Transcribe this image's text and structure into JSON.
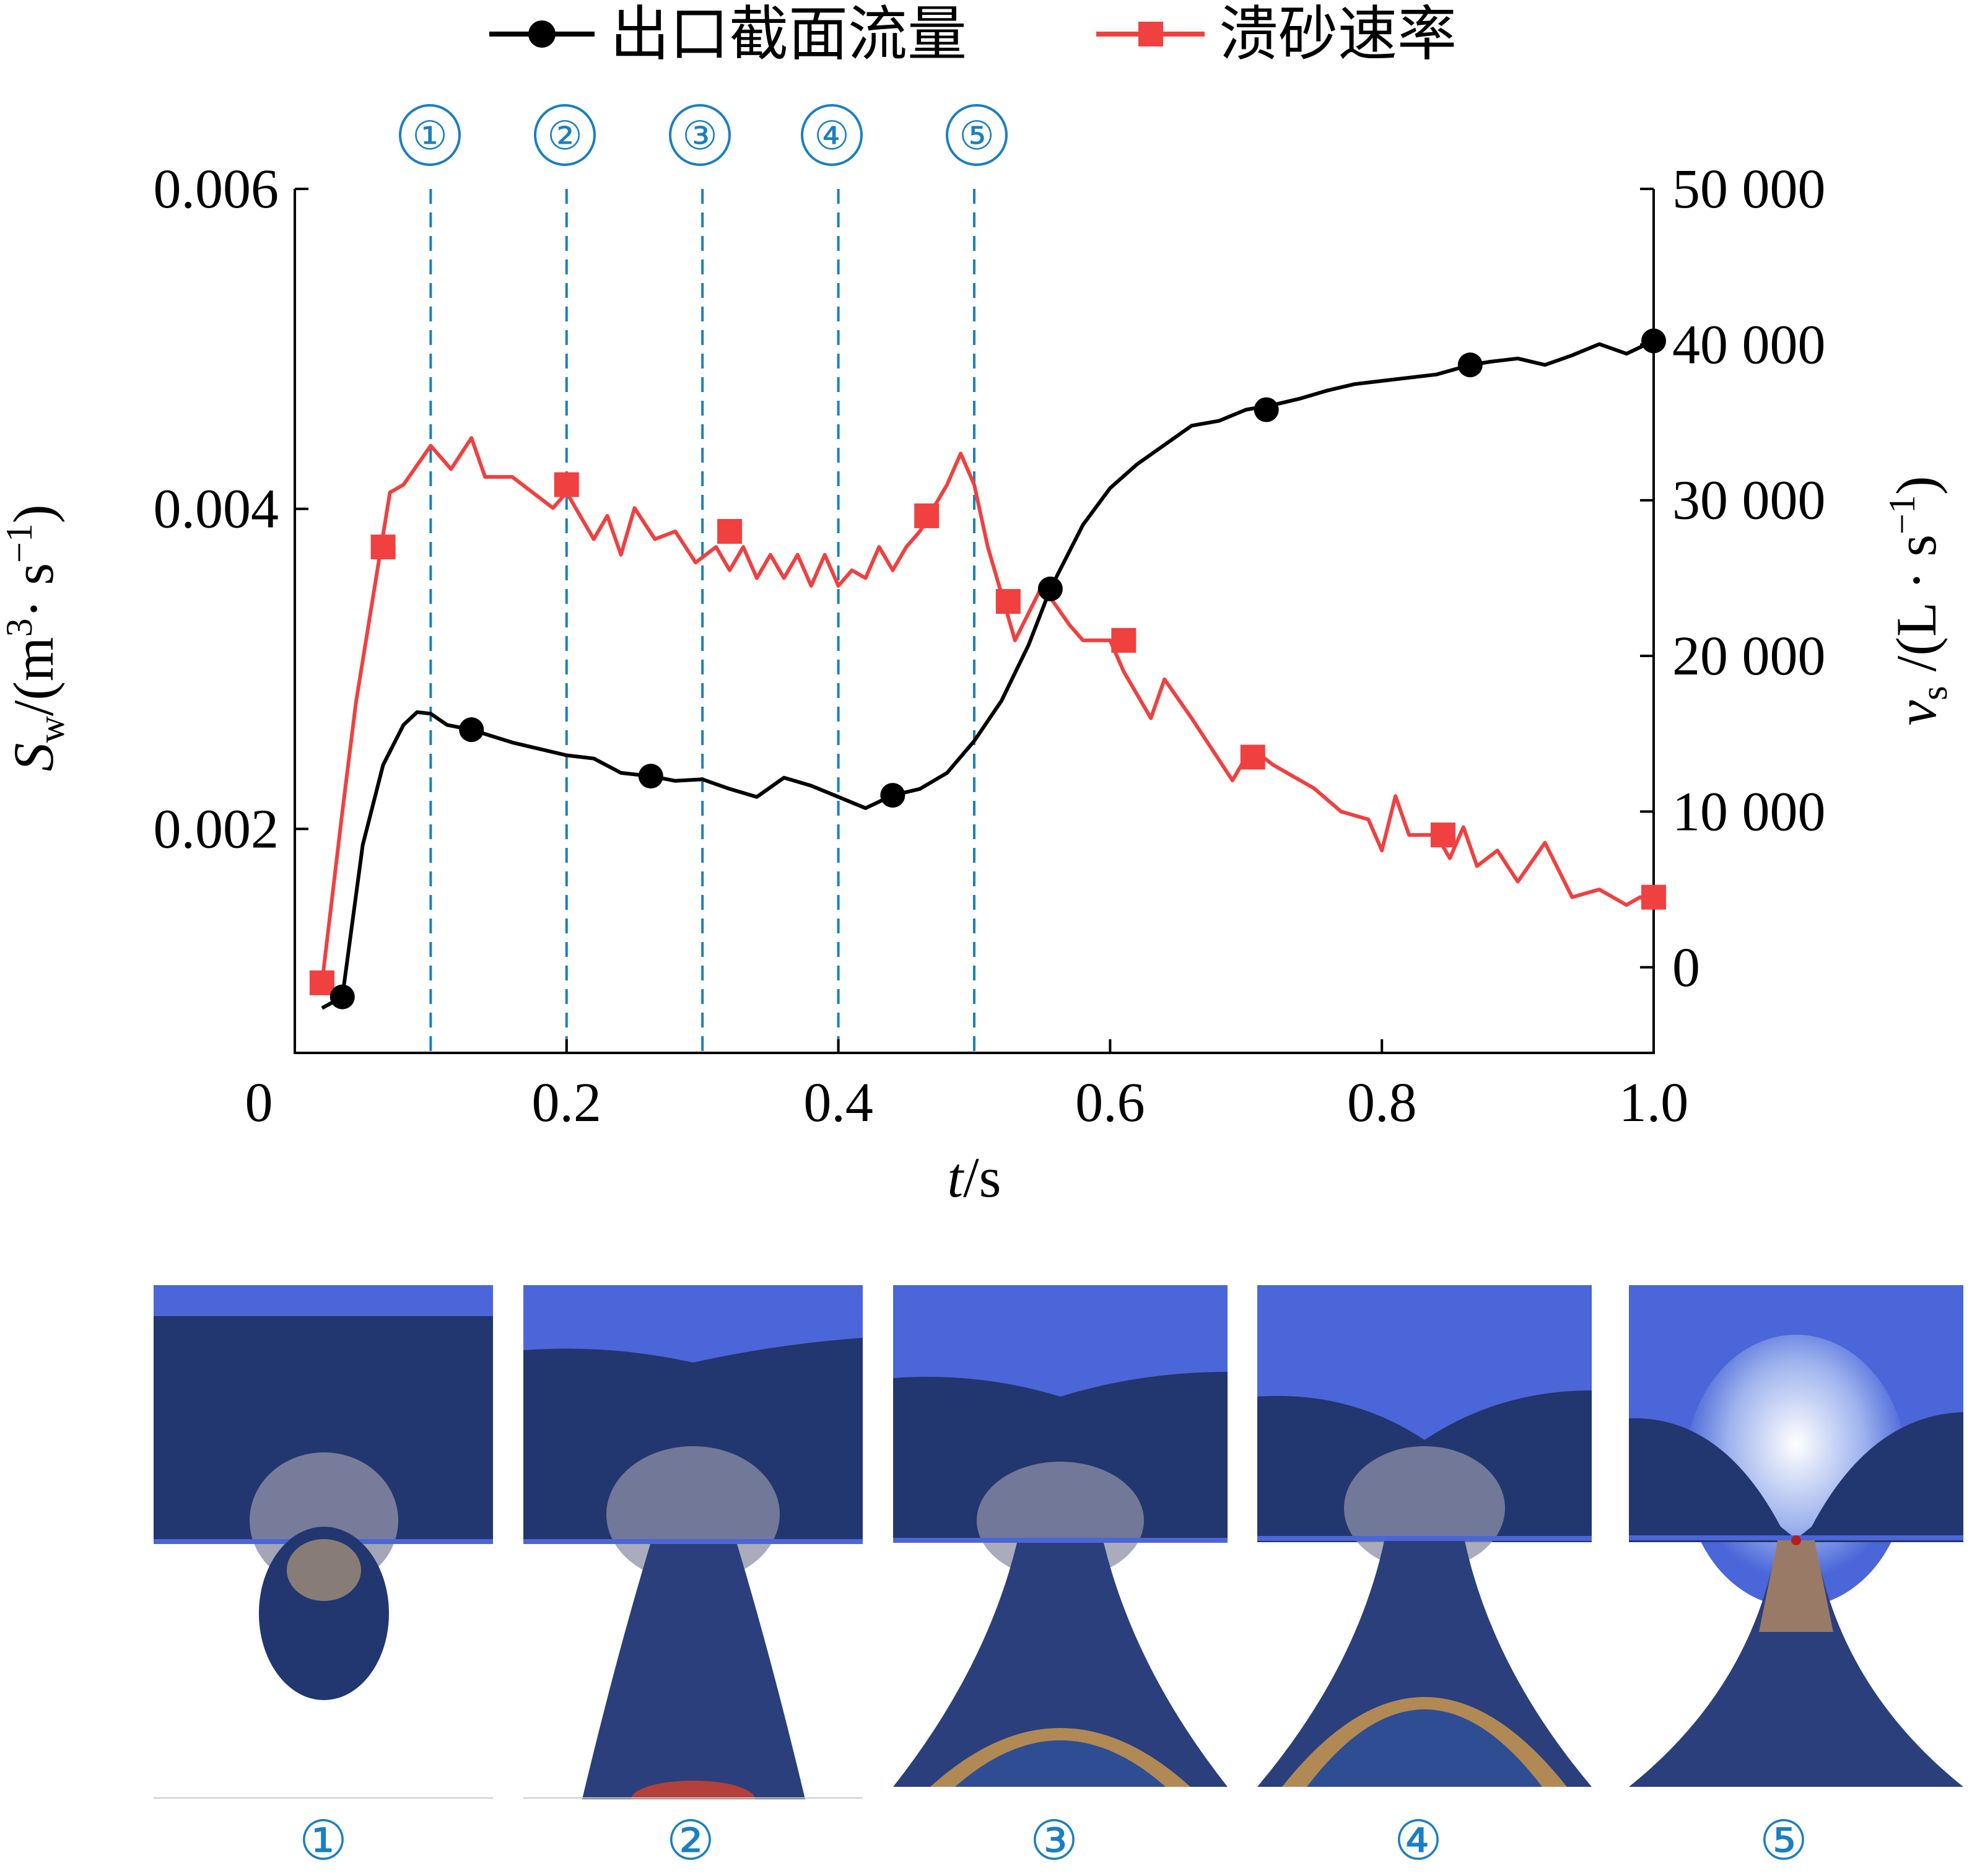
{
  "legend": [
    {
      "label": "出口截面流量",
      "color": "#000000",
      "marker": "circle"
    },
    {
      "label": "溃砂速率",
      "color": "#f04040",
      "marker": "square"
    }
  ],
  "markers": [
    "①",
    "②",
    "③",
    "④",
    "⑤"
  ],
  "snapshots": [
    {
      "label": "①"
    },
    {
      "label": "②"
    },
    {
      "label": "③"
    },
    {
      "label": "④"
    },
    {
      "label": "⑤"
    }
  ],
  "colors": {
    "accent": "#1a7fc1",
    "flow": "#000000",
    "sand": "#f04040"
  },
  "chart_data": {
    "type": "line",
    "xlabel": "t/s",
    "ylabel_left": "S_w/(m³·s⁻¹)",
    "ylabel_right": "v_s/(L·s⁻¹)",
    "xlim": [
      0,
      1.0
    ],
    "ylim_left": [
      0.0006,
      0.006
    ],
    "ylim_right": [
      -5500,
      50000
    ],
    "x_ticks": [
      "0",
      "0.2",
      "0.4",
      "0.6",
      "0.8",
      "1.0"
    ],
    "y_left_ticks": [
      "0.002",
      "0.004",
      "0.006"
    ],
    "y_right_ticks": [
      "0",
      "10 000",
      "20 000",
      "30 000",
      "40 000",
      "50 000"
    ],
    "event_lines_t": [
      0.1,
      0.2,
      0.3,
      0.4,
      0.5
    ],
    "series": [
      {
        "name": "出口截面流量",
        "axis": "left",
        "x": [
          0.02,
          0.035,
          0.05,
          0.065,
          0.08,
          0.09,
          0.1,
          0.112,
          0.13,
          0.16,
          0.2,
          0.22,
          0.24,
          0.262,
          0.28,
          0.3,
          0.32,
          0.34,
          0.36,
          0.38,
          0.4,
          0.42,
          0.44,
          0.46,
          0.48,
          0.5,
          0.52,
          0.54,
          0.556,
          0.58,
          0.6,
          0.62,
          0.64,
          0.66,
          0.68,
          0.7,
          0.72,
          0.74,
          0.76,
          0.78,
          0.8,
          0.82,
          0.84,
          0.865,
          0.88,
          0.9,
          0.92,
          0.94,
          0.96,
          0.98,
          1.0
        ],
        "y": [
          0.00088,
          0.00095,
          0.0019,
          0.0024,
          0.00265,
          0.00273,
          0.00272,
          0.00265,
          0.00262,
          0.00254,
          0.00246,
          0.00244,
          0.00235,
          0.00233,
          0.0023,
          0.00231,
          0.00225,
          0.0022,
          0.00232,
          0.00227,
          0.0022,
          0.00213,
          0.00221,
          0.00225,
          0.00235,
          0.00255,
          0.0028,
          0.00315,
          0.0035,
          0.0039,
          0.00413,
          0.00428,
          0.0044,
          0.00452,
          0.00455,
          0.00462,
          0.00465,
          0.00469,
          0.00474,
          0.00478,
          0.0048,
          0.00482,
          0.00484,
          0.0049,
          0.00492,
          0.00494,
          0.0049,
          0.00496,
          0.00503,
          0.00497,
          0.00505
        ],
        "marker_x": [
          0.035,
          0.13,
          0.262,
          0.44,
          0.556,
          0.715,
          0.865,
          1.0
        ],
        "marker_y": [
          0.00095,
          0.00262,
          0.00233,
          0.00221,
          0.0035,
          0.00462,
          0.0049,
          0.00505
        ]
      },
      {
        "name": "溃砂速率",
        "axis": "right",
        "x": [
          0.02,
          0.035,
          0.045,
          0.07,
          0.08,
          0.1,
          0.115,
          0.13,
          0.14,
          0.16,
          0.19,
          0.2,
          0.21,
          0.22,
          0.23,
          0.24,
          0.25,
          0.265,
          0.28,
          0.295,
          0.31,
          0.32,
          0.33,
          0.34,
          0.35,
          0.36,
          0.37,
          0.38,
          0.39,
          0.4,
          0.41,
          0.42,
          0.43,
          0.44,
          0.45,
          0.46,
          0.47,
          0.48,
          0.49,
          0.5,
          0.51,
          0.52,
          0.53,
          0.55,
          0.57,
          0.58,
          0.59,
          0.6,
          0.61,
          0.62,
          0.63,
          0.64,
          0.66,
          0.675,
          0.69,
          0.7,
          0.705,
          0.72,
          0.73,
          0.75,
          0.77,
          0.79,
          0.8,
          0.81,
          0.82,
          0.84,
          0.85,
          0.86,
          0.87,
          0.885,
          0.9,
          0.92,
          0.94,
          0.96,
          0.98,
          0.99,
          1.0
        ],
        "y": [
          -1000,
          10000,
          17000,
          30500,
          31000,
          33500,
          32000,
          34000,
          31500,
          31500,
          29500,
          30500,
          29000,
          27500,
          29000,
          26500,
          29500,
          27500,
          28000,
          26000,
          27000,
          25500,
          27000,
          25000,
          26500,
          25000,
          26500,
          24500,
          26500,
          24500,
          25500,
          25000,
          27000,
          25500,
          27000,
          28000,
          29500,
          31000,
          33000,
          31000,
          27000,
          24000,
          21000,
          24500,
          22000,
          21000,
          21000,
          21000,
          19000,
          17500,
          16000,
          18500,
          16000,
          14000,
          12000,
          13500,
          14000,
          13000,
          12500,
          11500,
          10000,
          9500,
          7500,
          11000,
          8500,
          8500,
          7000,
          9000,
          6500,
          7500,
          5500,
          8000,
          4500,
          5000,
          4000,
          4500,
          4000
        ],
        "marker_x": [
          0.02,
          0.065,
          0.2,
          0.32,
          0.465,
          0.525,
          0.61,
          0.705,
          0.845,
          1.0
        ],
        "marker_y": [
          -1000,
          27000,
          31000,
          28000,
          29000,
          23500,
          21000,
          13500,
          8500,
          4500
        ]
      }
    ]
  }
}
